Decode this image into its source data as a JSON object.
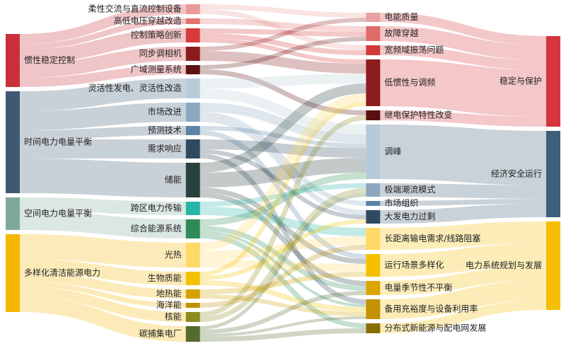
{
  "chart_data": {
    "type": "sankey",
    "nodes": [
      {
        "name": "惯性稳定控制",
        "color": "#c9303a"
      },
      {
        "name": "时间电力电量平衡",
        "color": "#3e5a72"
      },
      {
        "name": "空间电力电量平衡",
        "color": "#7fa99c"
      },
      {
        "name": "多样化清洁能源电力",
        "color": "#f4b800"
      },
      {
        "name": "柔性交流与直流控制设备",
        "color": "#e99a9a"
      },
      {
        "name": "高低电压穿越改造",
        "color": "#e47070"
      },
      {
        "name": "控制策略创新",
        "color": "#d63a3a"
      },
      {
        "name": "同步调相机",
        "color": "#8b1c1c"
      },
      {
        "name": "广域测量系统",
        "color": "#5c1212"
      },
      {
        "name": "灵活性发电、灵活性改造",
        "color": "#b9cbd9"
      },
      {
        "name": "市场改进",
        "color": "#8ba8c0"
      },
      {
        "name": "预测技术",
        "color": "#5d84a6"
      },
      {
        "name": "需求响应",
        "color": "#2f4a60"
      },
      {
        "name": "储能",
        "color": "#27413c"
      },
      {
        "name": "跨区电力传输",
        "color": "#27b5a8"
      },
      {
        "name": "综合能源系统",
        "color": "#2e8b57"
      },
      {
        "name": "光热",
        "color": "#ffd966"
      },
      {
        "name": "生物质能",
        "color": "#f2c200"
      },
      {
        "name": "地热能",
        "color": "#d4a000"
      },
      {
        "name": "海洋能",
        "color": "#c09000"
      },
      {
        "name": "核能",
        "color": "#8b8b20"
      },
      {
        "name": "碳捕集电厂",
        "color": "#556b2f"
      },
      {
        "name": "电能质量",
        "color": "#e8a0a0"
      },
      {
        "name": "故障穿越",
        "color": "#e06b6b"
      },
      {
        "name": "宽频域振荡问题",
        "color": "#d23a3a"
      },
      {
        "name": "低惯性与调频",
        "color": "#8e1c1c"
      },
      {
        "name": "继电保护特性改变",
        "color": "#5a1010"
      },
      {
        "name": "调峰",
        "color": "#b7c9d8"
      },
      {
        "name": "极端潮流模式",
        "color": "#8aa7bf"
      },
      {
        "name": "市场组织",
        "color": "#5d84a6"
      },
      {
        "name": "大发电力过剩",
        "color": "#2f4a60"
      },
      {
        "name": "长距离输电需求/线路阻塞",
        "color": "#ffd966"
      },
      {
        "name": "运行场景多样化",
        "color": "#f5c000"
      },
      {
        "name": "电量季节性不平衡",
        "color": "#dca500"
      },
      {
        "name": "备用充裕度与设备利用率",
        "color": "#c29200"
      },
      {
        "name": "分布式新能源与配电网发展",
        "color": "#8a6d00"
      },
      {
        "name": "稳定与保护",
        "color": "#d7353d"
      },
      {
        "name": "经济安全运行",
        "color": "#3e5f78"
      },
      {
        "name": "电力系统规划与发展",
        "color": "#f5be00"
      }
    ],
    "links": [
      {
        "source": 0,
        "target": 4,
        "value": 14
      },
      {
        "source": 0,
        "target": 5,
        "value": 8
      },
      {
        "source": 0,
        "target": 6,
        "value": 20
      },
      {
        "source": 0,
        "target": 7,
        "value": 20
      },
      {
        "source": 0,
        "target": 8,
        "value": 13
      },
      {
        "source": 1,
        "target": 9,
        "value": 28
      },
      {
        "source": 1,
        "target": 10,
        "value": 27
      },
      {
        "source": 1,
        "target": 11,
        "value": 13
      },
      {
        "source": 1,
        "target": 12,
        "value": 27
      },
      {
        "source": 1,
        "target": 13,
        "value": 49
      },
      {
        "source": 2,
        "target": 14,
        "value": 19
      },
      {
        "source": 2,
        "target": 15,
        "value": 27
      },
      {
        "source": 3,
        "target": 16,
        "value": 35
      },
      {
        "source": 3,
        "target": 17,
        "value": 19
      },
      {
        "source": 3,
        "target": 18,
        "value": 13
      },
      {
        "source": 3,
        "target": 19,
        "value": 7
      },
      {
        "source": 3,
        "target": 20,
        "value": 14
      },
      {
        "source": 3,
        "target": 21,
        "value": 22
      },
      {
        "source": 4,
        "target": 22,
        "value": 7
      },
      {
        "source": 4,
        "target": 24,
        "value": 7
      },
      {
        "source": 5,
        "target": 23,
        "value": 8
      },
      {
        "source": 6,
        "target": 23,
        "value": 7
      },
      {
        "source": 6,
        "target": 24,
        "value": 7
      },
      {
        "source": 6,
        "target": 25,
        "value": 6
      },
      {
        "source": 7,
        "target": 25,
        "value": 14
      },
      {
        "source": 7,
        "target": 22,
        "value": 6
      },
      {
        "source": 8,
        "target": 26,
        "value": 7
      },
      {
        "source": 8,
        "target": 23,
        "value": 6
      },
      {
        "source": 9,
        "target": 25,
        "value": 14
      },
      {
        "source": 9,
        "target": 27,
        "value": 14
      },
      {
        "source": 10,
        "target": 27,
        "value": 13
      },
      {
        "source": 10,
        "target": 29,
        "value": 7
      },
      {
        "source": 10,
        "target": 30,
        "value": 7
      },
      {
        "source": 11,
        "target": 32,
        "value": 7
      },
      {
        "source": 11,
        "target": 27,
        "value": 6
      },
      {
        "source": 12,
        "target": 27,
        "value": 14
      },
      {
        "source": 12,
        "target": 30,
        "value": 6
      },
      {
        "source": 12,
        "target": 34,
        "value": 7
      },
      {
        "source": 13,
        "target": 25,
        "value": 14
      },
      {
        "source": 13,
        "target": 27,
        "value": 21
      },
      {
        "source": 13,
        "target": 33,
        "value": 7
      },
      {
        "source": 13,
        "target": 32,
        "value": 7
      },
      {
        "source": 14,
        "target": 31,
        "value": 12
      },
      {
        "source": 14,
        "target": 28,
        "value": 7
      },
      {
        "source": 15,
        "target": 27,
        "value": 9
      },
      {
        "source": 15,
        "target": 35,
        "value": 7
      },
      {
        "source": 15,
        "target": 33,
        "value": 7
      },
      {
        "source": 15,
        "target": 34,
        "value": 4
      },
      {
        "source": 16,
        "target": 25,
        "value": 12
      },
      {
        "source": 16,
        "target": 31,
        "value": 12
      },
      {
        "source": 16,
        "target": 32,
        "value": 11
      },
      {
        "source": 17,
        "target": 25,
        "value": 6
      },
      {
        "source": 17,
        "target": 34,
        "value": 7
      },
      {
        "source": 17,
        "target": 30,
        "value": 6
      },
      {
        "source": 18,
        "target": 34,
        "value": 6
      },
      {
        "source": 18,
        "target": 32,
        "value": 7
      },
      {
        "source": 19,
        "target": 31,
        "value": 7
      },
      {
        "source": 20,
        "target": 26,
        "value": 7
      },
      {
        "source": 20,
        "target": 28,
        "value": 7
      },
      {
        "source": 21,
        "target": 35,
        "value": 7
      },
      {
        "source": 21,
        "target": 34,
        "value": 4
      },
      {
        "source": 21,
        "target": 28,
        "value": 5
      },
      {
        "source": 21,
        "target": 33,
        "value": 6
      },
      {
        "source": 22,
        "target": 36,
        "value": 13
      },
      {
        "source": 23,
        "target": 36,
        "value": 21
      },
      {
        "source": 24,
        "target": 36,
        "value": 14
      },
      {
        "source": 25,
        "target": 36,
        "value": 66
      },
      {
        "source": 26,
        "target": 36,
        "value": 14
      },
      {
        "source": 27,
        "target": 37,
        "value": 77
      },
      {
        "source": 28,
        "target": 37,
        "value": 19
      },
      {
        "source": 29,
        "target": 37,
        "value": 7
      },
      {
        "source": 30,
        "target": 37,
        "value": 19
      },
      {
        "source": 31,
        "target": 38,
        "value": 31
      },
      {
        "source": 32,
        "target": 38,
        "value": 32
      },
      {
        "source": 33,
        "target": 38,
        "value": 20
      },
      {
        "source": 34,
        "target": 38,
        "value": 28
      },
      {
        "source": 35,
        "target": 38,
        "value": 14
      }
    ]
  }
}
